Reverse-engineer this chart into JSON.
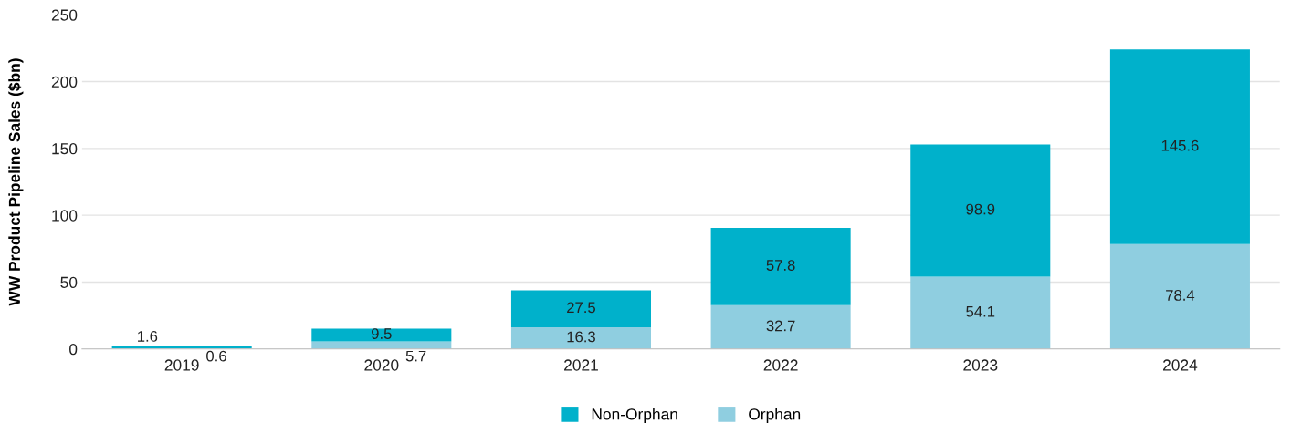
{
  "chart_data": {
    "type": "bar",
    "stacked": true,
    "ylabel": "WW Product Pipeline Sales ($bn)",
    "categories": [
      "2019",
      "2020",
      "2021",
      "2022",
      "2023",
      "2024"
    ],
    "series": [
      {
        "name": "Orphan",
        "color": "#8fcee0",
        "values": [
          0.6,
          5.7,
          16.3,
          32.7,
          54.1,
          78.4
        ]
      },
      {
        "name": "Non-Orphan",
        "color": "#00b1cb",
        "values": [
          1.6,
          9.5,
          27.5,
          57.8,
          98.9,
          145.6
        ]
      }
    ],
    "ylim": [
      0,
      250
    ],
    "yticks": [
      0,
      50,
      100,
      150,
      200,
      250
    ],
    "grid": "y",
    "legend": "bottom",
    "data_labels": true
  }
}
